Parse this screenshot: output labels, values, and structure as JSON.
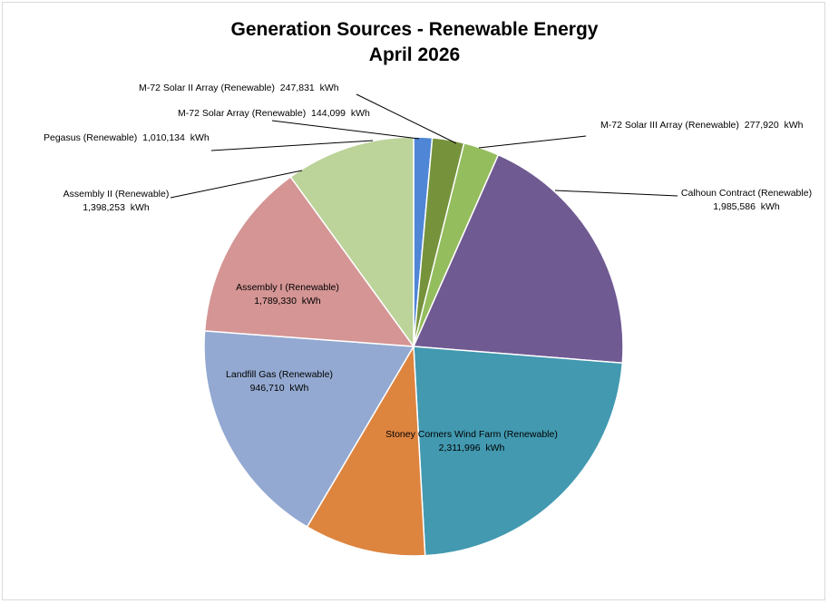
{
  "chart_data": {
    "type": "pie",
    "title": "Generation Sources - Renewable Energy",
    "subtitle": "April 2026",
    "unit": "kWh",
    "slices": [
      {
        "name": "M-72 Solar Array (Renewable)",
        "value": 144099,
        "value_label": "144,099",
        "color": "#4f86d6"
      },
      {
        "name": "M-72 Solar II Array (Renewable)",
        "value": 247831,
        "value_label": "247,831",
        "color": "#76933c"
      },
      {
        "name": "M-72 Solar III Array (Renewable)",
        "value": 277920,
        "value_label": "277,920",
        "color": "#94bd5e"
      },
      {
        "name": "Calhoun Contract (Renewable)",
        "value": 1985586,
        "value_label": "1,985,586",
        "color": "#705a92"
      },
      {
        "name": "Stoney Corners Wind Farm (Renewable)",
        "value": 2311996,
        "value_label": "2,311,996",
        "color": "#4299b0"
      },
      {
        "name": "Landfill Gas (Renewable)",
        "value": 946710,
        "value_label": "946,710",
        "color": "#dd843f"
      },
      {
        "name": "Assembly I (Renewable)",
        "value": 1789330,
        "value_label": "1,789,330",
        "color": "#93a9d1"
      },
      {
        "name": "Assembly II (Renewable)",
        "value": 1398253,
        "value_label": "1,398,253",
        "color": "#d49594"
      },
      {
        "name": "Pegasus (Renewable)",
        "value": 1010134,
        "value_label": "1,010,134",
        "color": "#bcd39a"
      }
    ],
    "legend": "none"
  }
}
